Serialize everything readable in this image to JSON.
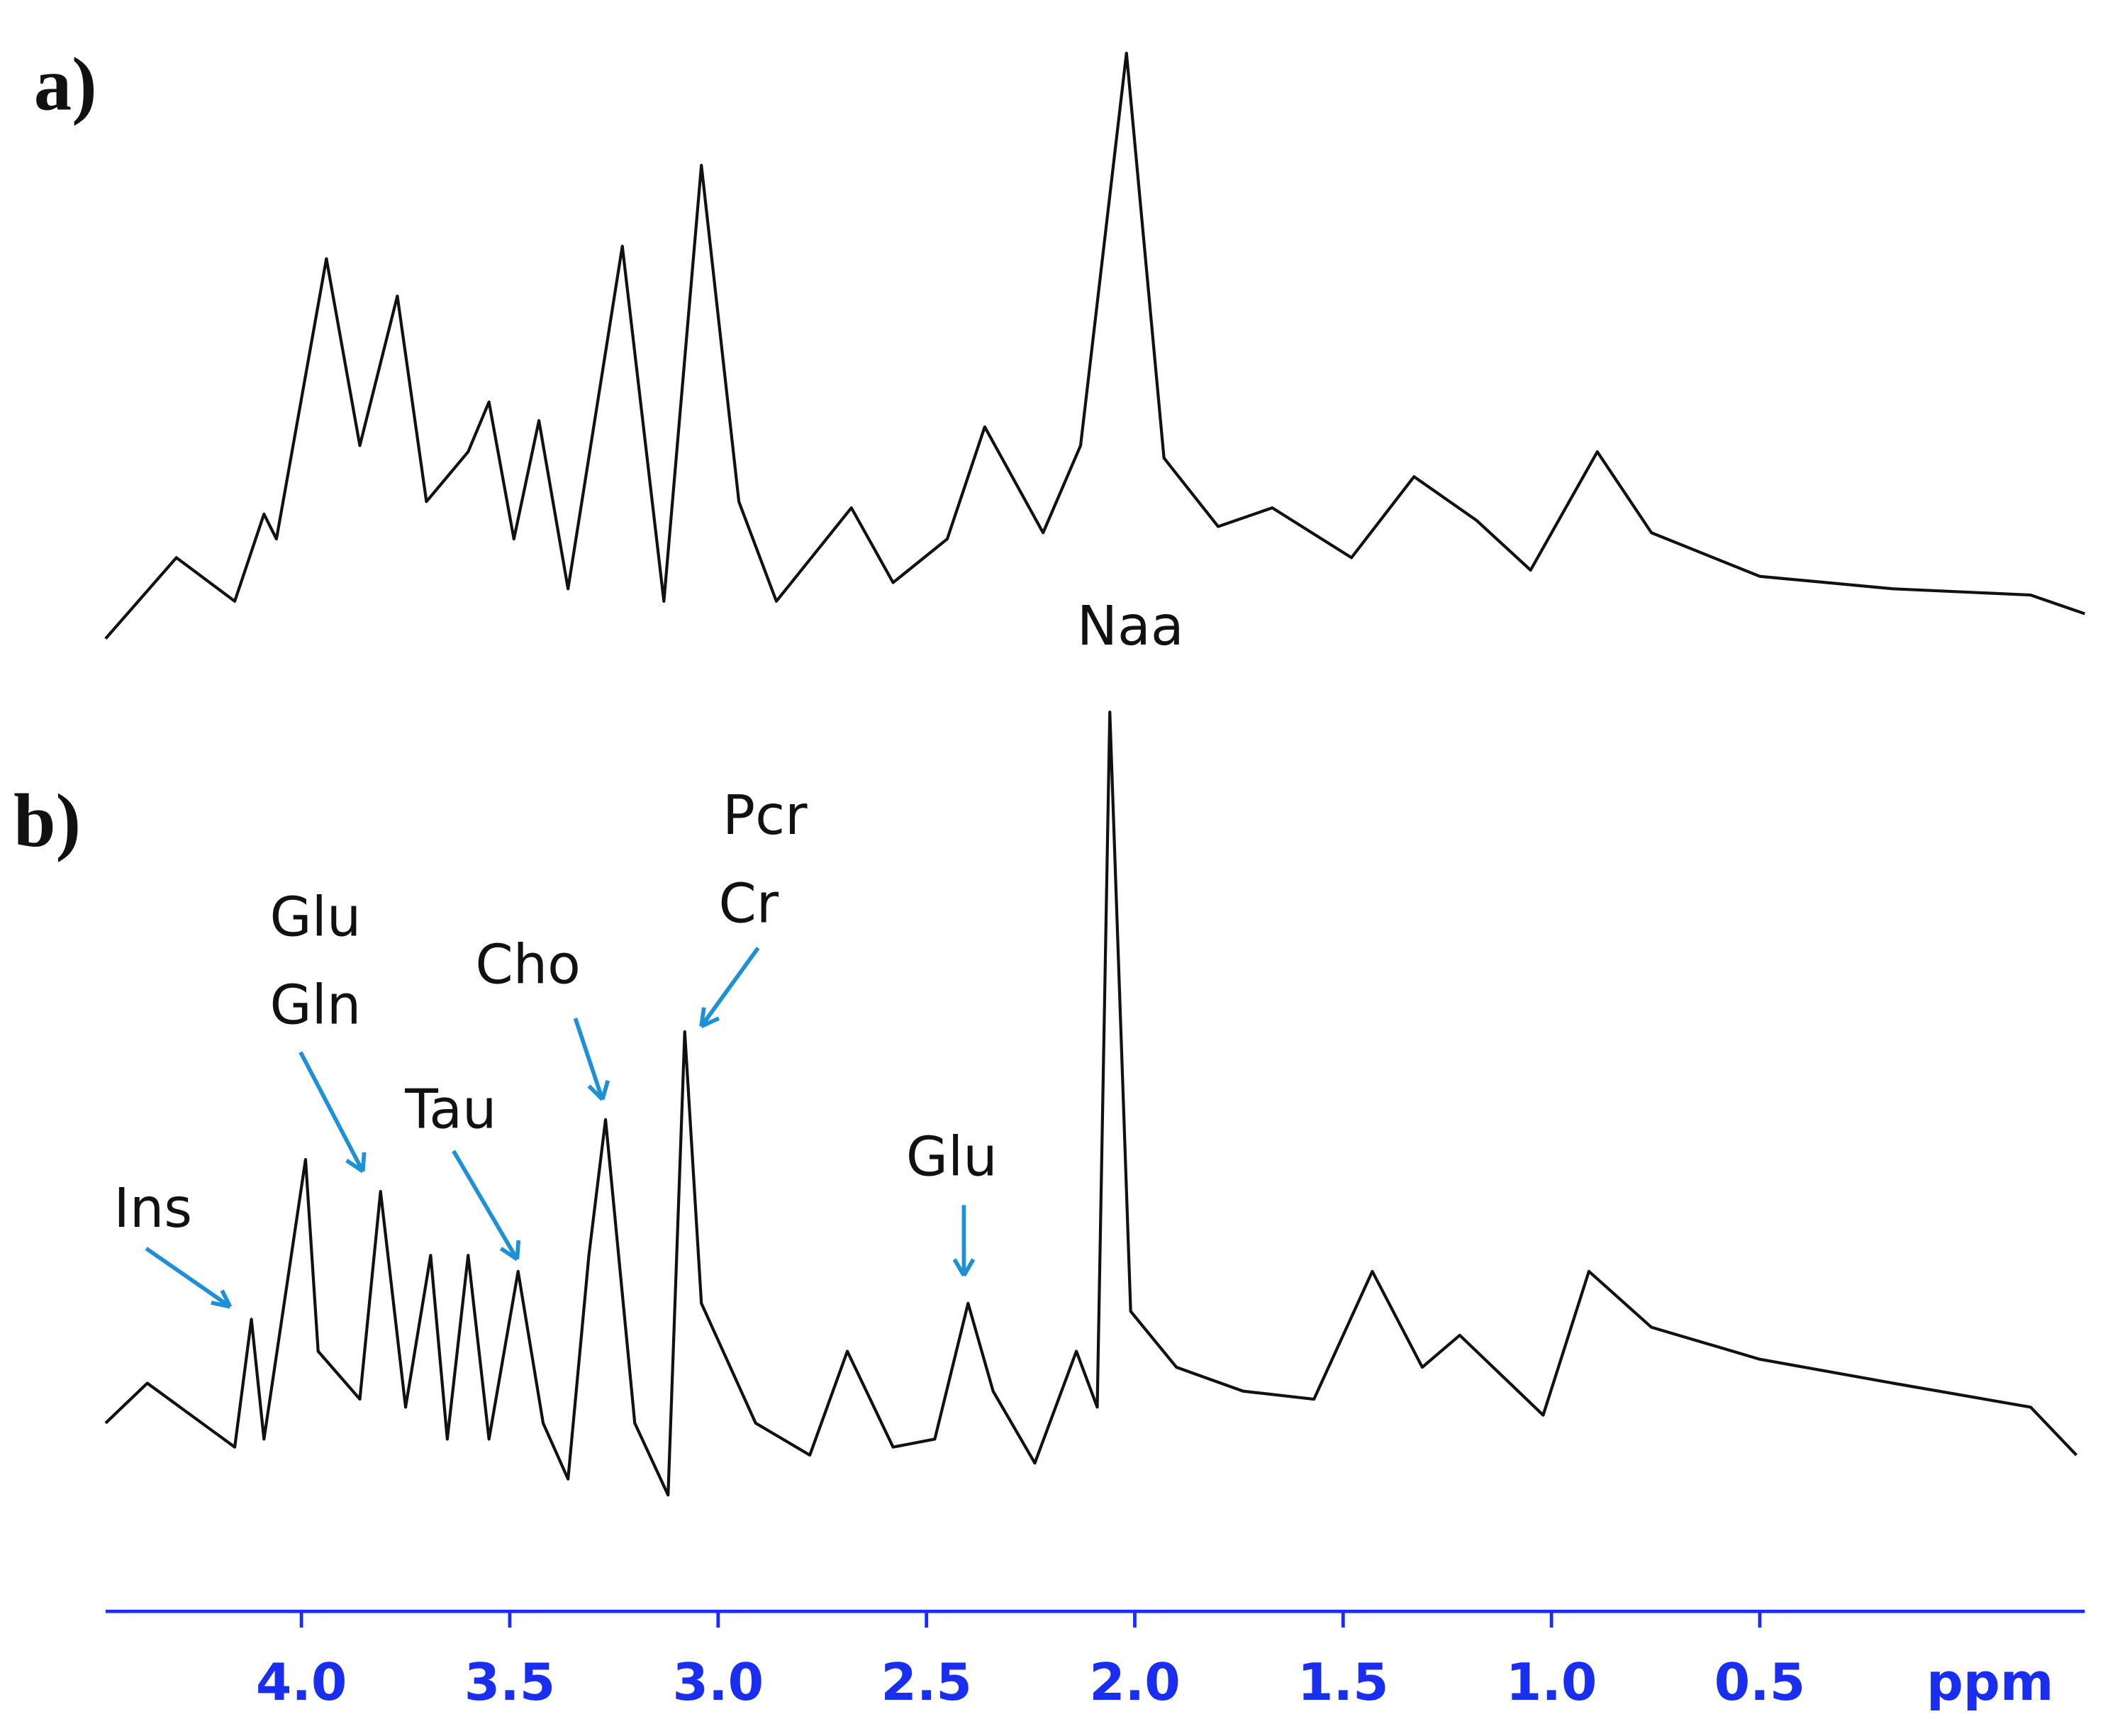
{
  "chart_data": [
    {
      "type": "line",
      "title": "a)",
      "color": "#111111",
      "x": [
        4.47,
        4.3,
        4.16,
        4.09,
        4.06,
        3.94,
        3.86,
        3.77,
        3.7,
        3.6,
        3.55,
        3.49,
        3.43,
        3.36,
        3.23,
        3.13,
        3.04,
        2.95,
        2.86,
        2.68,
        2.58,
        2.45,
        2.36,
        2.22,
        2.13,
        2.02,
        1.93,
        1.8,
        1.67,
        1.48,
        1.33,
        1.18,
        1.05,
        0.89,
        0.76,
        0.5,
        0.18,
        -0.15,
        -0.28
      ],
      "values": [
        4,
        17,
        10,
        24,
        20,
        65,
        35,
        59,
        26,
        34,
        42,
        20,
        39,
        12,
        67,
        10,
        80,
        26,
        10,
        25,
        13,
        20,
        38,
        21,
        35,
        98,
        33,
        22,
        25,
        17,
        30,
        23,
        15,
        34,
        21,
        14,
        12,
        11,
        8
      ],
      "xlim": [
        4.47,
        -0.28
      ],
      "ylim": [
        0,
        100
      ]
    },
    {
      "type": "line",
      "title": "b)",
      "color": "#111111",
      "x": [
        4.47,
        4.37,
        4.16,
        4.12,
        4.09,
        3.99,
        3.96,
        3.86,
        3.81,
        3.75,
        3.69,
        3.65,
        3.6,
        3.55,
        3.48,
        3.42,
        3.36,
        3.31,
        3.27,
        3.2,
        3.12,
        3.08,
        3.04,
        2.91,
        2.78,
        2.69,
        2.58,
        2.48,
        2.4,
        2.34,
        2.24,
        2.14,
        2.09,
        2.06,
        2.01,
        1.9,
        1.74,
        1.57,
        1.43,
        1.31,
        1.22,
        1.02,
        0.91,
        0.76,
        0.5,
        0.18,
        -0.15,
        -0.26
      ],
      "values": [
        10,
        15,
        7,
        23,
        8,
        43,
        19,
        13,
        39,
        12,
        31,
        8,
        31,
        8,
        29,
        10,
        3,
        31,
        48,
        10,
        1,
        59,
        25,
        10,
        6,
        19,
        7,
        8,
        25,
        14,
        5,
        19,
        12,
        99,
        24,
        17,
        14,
        13,
        29,
        17,
        21,
        11,
        29,
        22,
        18,
        15,
        12,
        6
      ],
      "xlim": [
        4.47,
        -0.28
      ],
      "ylim": [
        0,
        100
      ],
      "xticks": [
        {
          "value": 4.0,
          "label": "4.0"
        },
        3.5,
        {
          "value": 3.0,
          "label": "3.0"
        },
        2.5,
        {
          "value": 2.0,
          "label": "2.0"
        },
        1.5,
        {
          "value": 1.0,
          "label": "1.0"
        },
        0.5
      ],
      "xlabel": "ppm",
      "axis_color": "#1a2ef0",
      "annotations": [
        "Naa",
        "Pcr",
        "Cr",
        "Glu",
        "Gln",
        "Tau",
        "Cho",
        "Ins",
        "Glu"
      ]
    }
  ]
}
